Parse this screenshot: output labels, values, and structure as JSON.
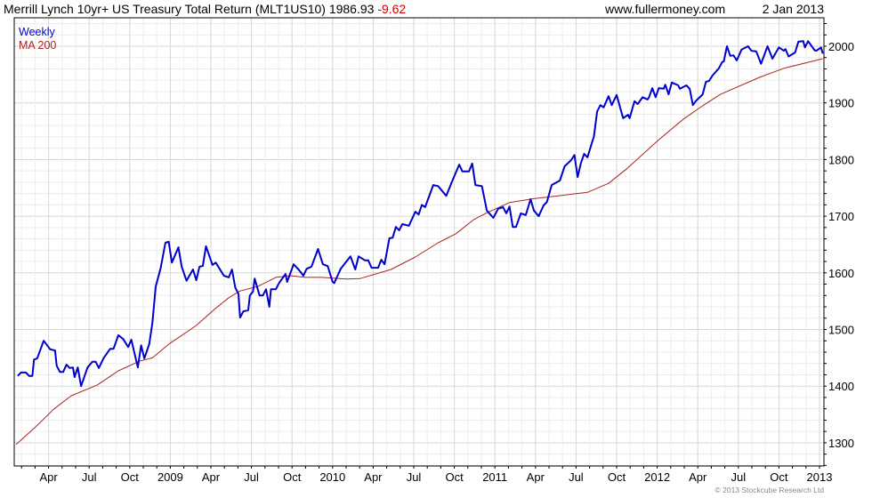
{
  "header": {
    "title": "Merrill Lynch 10yr+ US Treasury Total Return (MLT1US10)",
    "last_value": "1986.93",
    "change": "-9.62",
    "site": "www.fullermoney.com",
    "date": "2 Jan 2013"
  },
  "footer": {
    "copyright": "© 2013 Stockcube Research Ltd"
  },
  "colors": {
    "weekly": "#0000cc",
    "ma": "#aa2222",
    "change": "#cc0000",
    "grid": "#dddddd"
  },
  "chart_data": {
    "type": "line",
    "title": "Merrill Lynch 10yr+ US Treasury Total Return (MLT1US10)",
    "xlabel": "",
    "ylabel": "",
    "xlim": [
      2007.95,
      2013.03
    ],
    "ylim": [
      1260,
      2060
    ],
    "grid": true,
    "legend_position": "top-left",
    "x_ticks": [
      {
        "t": 2008.25,
        "label": "Apr"
      },
      {
        "t": 2008.5,
        "label": "Jul"
      },
      {
        "t": 2008.75,
        "label": "Oct"
      },
      {
        "t": 2009.0,
        "label": "2009"
      },
      {
        "t": 2009.25,
        "label": "Apr"
      },
      {
        "t": 2009.5,
        "label": "Jul"
      },
      {
        "t": 2009.75,
        "label": "Oct"
      },
      {
        "t": 2010.0,
        "label": "2010"
      },
      {
        "t": 2010.25,
        "label": "Apr"
      },
      {
        "t": 2010.5,
        "label": "Jul"
      },
      {
        "t": 2010.75,
        "label": "Oct"
      },
      {
        "t": 2011.0,
        "label": "2011"
      },
      {
        "t": 2011.25,
        "label": "Apr"
      },
      {
        "t": 2011.5,
        "label": "Jul"
      },
      {
        "t": 2011.75,
        "label": "Oct"
      },
      {
        "t": 2012.0,
        "label": "2012"
      },
      {
        "t": 2012.25,
        "label": "Apr"
      },
      {
        "t": 2012.5,
        "label": "Jul"
      },
      {
        "t": 2012.75,
        "label": "Oct"
      },
      {
        "t": 2013.0,
        "label": "2013"
      }
    ],
    "y_ticks": [
      1300,
      1400,
      1500,
      1600,
      1700,
      1800,
      1900,
      2000
    ],
    "series": [
      {
        "name": "Weekly",
        "color": "#0000cc",
        "points": [
          [
            2008.06,
            1418
          ],
          [
            2008.08,
            1424
          ],
          [
            2008.11,
            1424
          ],
          [
            2008.13,
            1418
          ],
          [
            2008.15,
            1418
          ],
          [
            2008.16,
            1447
          ],
          [
            2008.18,
            1449
          ],
          [
            2008.22,
            1480
          ],
          [
            2008.26,
            1465
          ],
          [
            2008.29,
            1463
          ],
          [
            2008.3,
            1436
          ],
          [
            2008.32,
            1425
          ],
          [
            2008.34,
            1425
          ],
          [
            2008.36,
            1438
          ],
          [
            2008.38,
            1432
          ],
          [
            2008.4,
            1433
          ],
          [
            2008.41,
            1416
          ],
          [
            2008.43,
            1433
          ],
          [
            2008.45,
            1400
          ],
          [
            2008.49,
            1433
          ],
          [
            2008.52,
            1443
          ],
          [
            2008.54,
            1443
          ],
          [
            2008.56,
            1432
          ],
          [
            2008.59,
            1450
          ],
          [
            2008.63,
            1466
          ],
          [
            2008.65,
            1466
          ],
          [
            2008.68,
            1490
          ],
          [
            2008.71,
            1483
          ],
          [
            2008.74,
            1469
          ],
          [
            2008.76,
            1482
          ],
          [
            2008.8,
            1433
          ],
          [
            2008.82,
            1472
          ],
          [
            2008.84,
            1449
          ],
          [
            2008.87,
            1474
          ],
          [
            2008.89,
            1512
          ],
          [
            2008.91,
            1576
          ],
          [
            2008.94,
            1608
          ],
          [
            2008.97,
            1653
          ],
          [
            2008.99,
            1655
          ],
          [
            2009.01,
            1618
          ],
          [
            2009.05,
            1645
          ],
          [
            2009.07,
            1611
          ],
          [
            2009.1,
            1586
          ],
          [
            2009.14,
            1606
          ],
          [
            2009.16,
            1587
          ],
          [
            2009.18,
            1611
          ],
          [
            2009.2,
            1612
          ],
          [
            2009.22,
            1647
          ],
          [
            2009.26,
            1614
          ],
          [
            2009.28,
            1618
          ],
          [
            2009.33,
            1595
          ],
          [
            2009.36,
            1592
          ],
          [
            2009.38,
            1606
          ],
          [
            2009.4,
            1574
          ],
          [
            2009.42,
            1563
          ],
          [
            2009.43,
            1521
          ],
          [
            2009.45,
            1532
          ],
          [
            2009.48,
            1534
          ],
          [
            2009.49,
            1560
          ],
          [
            2009.51,
            1567
          ],
          [
            2009.52,
            1590
          ],
          [
            2009.55,
            1560
          ],
          [
            2009.57,
            1560
          ],
          [
            2009.59,
            1571
          ],
          [
            2009.61,
            1540
          ],
          [
            2009.62,
            1571
          ],
          [
            2009.65,
            1571
          ],
          [
            2009.67,
            1582
          ],
          [
            2009.71,
            1598
          ],
          [
            2009.72,
            1584
          ],
          [
            2009.76,
            1615
          ],
          [
            2009.79,
            1606
          ],
          [
            2009.82,
            1595
          ],
          [
            2009.84,
            1607
          ],
          [
            2009.87,
            1611
          ],
          [
            2009.91,
            1642
          ],
          [
            2009.94,
            1615
          ],
          [
            2009.97,
            1612
          ],
          [
            2010.0,
            1584
          ],
          [
            2010.01,
            1582
          ],
          [
            2010.05,
            1607
          ],
          [
            2010.11,
            1629
          ],
          [
            2010.14,
            1606
          ],
          [
            2010.16,
            1629
          ],
          [
            2010.2,
            1622
          ],
          [
            2010.22,
            1622
          ],
          [
            2010.24,
            1609
          ],
          [
            2010.28,
            1609
          ],
          [
            2010.3,
            1623
          ],
          [
            2010.32,
            1615
          ],
          [
            2010.35,
            1661
          ],
          [
            2010.37,
            1662
          ],
          [
            2010.39,
            1681
          ],
          [
            2010.41,
            1675
          ],
          [
            2010.43,
            1686
          ],
          [
            2010.47,
            1683
          ],
          [
            2010.51,
            1708
          ],
          [
            2010.53,
            1703
          ],
          [
            2010.55,
            1720
          ],
          [
            2010.57,
            1716
          ],
          [
            2010.62,
            1755
          ],
          [
            2010.65,
            1753
          ],
          [
            2010.7,
            1736
          ],
          [
            2010.74,
            1764
          ],
          [
            2010.78,
            1791
          ],
          [
            2010.8,
            1779
          ],
          [
            2010.84,
            1779
          ],
          [
            2010.86,
            1793
          ],
          [
            2010.88,
            1755
          ],
          [
            2010.92,
            1753
          ],
          [
            2010.95,
            1710
          ],
          [
            2010.99,
            1697
          ],
          [
            2011.02,
            1713
          ],
          [
            2011.05,
            1716
          ],
          [
            2011.07,
            1705
          ],
          [
            2011.09,
            1717
          ],
          [
            2011.11,
            1681
          ],
          [
            2011.13,
            1681
          ],
          [
            2011.16,
            1705
          ],
          [
            2011.19,
            1702
          ],
          [
            2011.22,
            1730
          ],
          [
            2011.24,
            1710
          ],
          [
            2011.27,
            1700
          ],
          [
            2011.3,
            1719
          ],
          [
            2011.32,
            1725
          ],
          [
            2011.35,
            1755
          ],
          [
            2011.4,
            1763
          ],
          [
            2011.43,
            1788
          ],
          [
            2011.47,
            1799
          ],
          [
            2011.49,
            1808
          ],
          [
            2011.51,
            1769
          ],
          [
            2011.53,
            1794
          ],
          [
            2011.55,
            1810
          ],
          [
            2011.57,
            1804
          ],
          [
            2011.61,
            1841
          ],
          [
            2011.63,
            1885
          ],
          [
            2011.65,
            1896
          ],
          [
            2011.67,
            1892
          ],
          [
            2011.7,
            1912
          ],
          [
            2011.72,
            1896
          ],
          [
            2011.75,
            1914
          ],
          [
            2011.79,
            1873
          ],
          [
            2011.82,
            1879
          ],
          [
            2011.83,
            1873
          ],
          [
            2011.86,
            1903
          ],
          [
            2011.88,
            1898
          ],
          [
            2011.91,
            1910
          ],
          [
            2011.94,
            1906
          ],
          [
            2011.95,
            1910
          ],
          [
            2011.97,
            1926
          ],
          [
            2011.99,
            1910
          ],
          [
            2012.01,
            1926
          ],
          [
            2012.04,
            1925
          ],
          [
            2012.05,
            1932
          ],
          [
            2012.07,
            1915
          ],
          [
            2012.09,
            1936
          ],
          [
            2012.13,
            1931
          ],
          [
            2012.14,
            1925
          ],
          [
            2012.18,
            1931
          ],
          [
            2012.2,
            1925
          ],
          [
            2012.22,
            1896
          ],
          [
            2012.24,
            1904
          ],
          [
            2012.28,
            1915
          ],
          [
            2012.3,
            1937
          ],
          [
            2012.32,
            1939
          ],
          [
            2012.34,
            1948
          ],
          [
            2012.38,
            1961
          ],
          [
            2012.4,
            1972
          ],
          [
            2012.41,
            1973
          ],
          [
            2012.43,
            2000
          ],
          [
            2012.45,
            1983
          ],
          [
            2012.47,
            1984
          ],
          [
            2012.49,
            1975
          ],
          [
            2012.52,
            1994
          ],
          [
            2012.56,
            2000
          ],
          [
            2012.58,
            1992
          ],
          [
            2012.61,
            1991
          ],
          [
            2012.64,
            1969
          ],
          [
            2012.68,
            2000
          ],
          [
            2012.71,
            1978
          ],
          [
            2012.75,
            1998
          ],
          [
            2012.78,
            1992
          ],
          [
            2012.79,
            1995
          ],
          [
            2012.81,
            1982
          ],
          [
            2012.85,
            1989
          ],
          [
            2012.87,
            2008
          ],
          [
            2012.9,
            2009
          ],
          [
            2012.91,
            1998
          ],
          [
            2012.93,
            2009
          ],
          [
            2012.97,
            1993
          ],
          [
            2012.98,
            1992
          ],
          [
            2013.01,
            1998
          ],
          [
            2013.02,
            1987
          ]
        ]
      },
      {
        "name": "MA 200",
        "color": "#aa2222",
        "points": [
          [
            2008.05,
            1297
          ],
          [
            2008.17,
            1328
          ],
          [
            2008.28,
            1359
          ],
          [
            2008.39,
            1383
          ],
          [
            2008.55,
            1402
          ],
          [
            2008.68,
            1427
          ],
          [
            2008.81,
            1444
          ],
          [
            2008.89,
            1450
          ],
          [
            2008.99,
            1474
          ],
          [
            2009.16,
            1507
          ],
          [
            2009.27,
            1535
          ],
          [
            2009.36,
            1556
          ],
          [
            2009.43,
            1568
          ],
          [
            2009.54,
            1576
          ],
          [
            2009.65,
            1592
          ],
          [
            2009.74,
            1595
          ],
          [
            2009.83,
            1592
          ],
          [
            2009.93,
            1592
          ],
          [
            2010.09,
            1589
          ],
          [
            2010.17,
            1590
          ],
          [
            2010.36,
            1606
          ],
          [
            2010.51,
            1628
          ],
          [
            2010.65,
            1653
          ],
          [
            2010.76,
            1669
          ],
          [
            2010.87,
            1694
          ],
          [
            2010.95,
            1706
          ],
          [
            2011.09,
            1724
          ],
          [
            2011.24,
            1731
          ],
          [
            2011.39,
            1736
          ],
          [
            2011.57,
            1742
          ],
          [
            2011.7,
            1758
          ],
          [
            2011.81,
            1783
          ],
          [
            2012.01,
            1835
          ],
          [
            2012.16,
            1871
          ],
          [
            2012.28,
            1895
          ],
          [
            2012.39,
            1915
          ],
          [
            2012.63,
            1945
          ],
          [
            2012.78,
            1961
          ],
          [
            2013.02,
            1978
          ]
        ]
      }
    ]
  }
}
